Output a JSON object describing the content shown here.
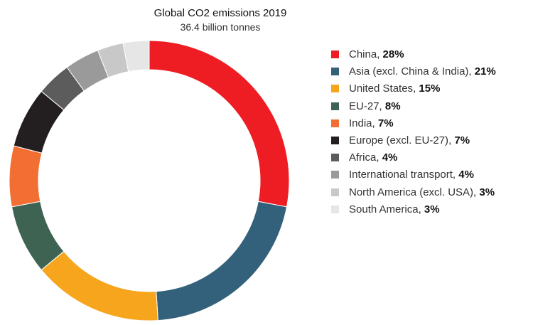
{
  "chart_data": {
    "type": "pie",
    "title": "Global  CO2 emissions 2019",
    "subtitle": "36.4 billion tonnes",
    "legend_position": "right",
    "slices": [
      {
        "label": "China",
        "value": 28,
        "value_label": "28%",
        "color": "#ee1d24"
      },
      {
        "label": "Asia (excl. China & India)",
        "value": 21,
        "value_label": "21%",
        "color": "#33607a"
      },
      {
        "label": "United States",
        "value": 15,
        "value_label": "15%",
        "color": "#f6a51d"
      },
      {
        "label": "EU-27",
        "value": 8,
        "value_label": "8%",
        "color": "#3e6353"
      },
      {
        "label": "India",
        "value": 7,
        "value_label": "7%",
        "color": "#f26e32"
      },
      {
        "label": "Europe (excl. EU-27)",
        "value": 7,
        "value_label": "7%",
        "color": "#231f20"
      },
      {
        "label": "Africa",
        "value": 4,
        "value_label": "4%",
        "color": "#5c5c5c"
      },
      {
        "label": "International transport",
        "value": 4,
        "value_label": "4%",
        "color": "#9a9a9a"
      },
      {
        "label": "North America (excl. USA)",
        "value": 3,
        "value_label": "3%",
        "color": "#c8c8c8"
      },
      {
        "label": "South America",
        "value": 3,
        "value_label": "3%",
        "color": "#e6e6e6"
      }
    ]
  }
}
